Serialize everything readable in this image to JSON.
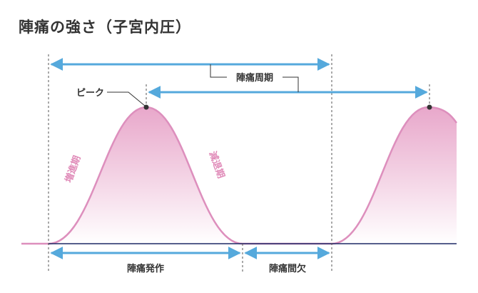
{
  "title": "陣痛の強さ（子宮内圧）",
  "labels": {
    "peak": "ピーク",
    "cycle": "陣痛周期",
    "increase": "増進期",
    "decrease": "減退期",
    "attack": "陣痛発作",
    "interval": "陣痛間欠"
  },
  "colors": {
    "curve": "#dd8fbd",
    "fill_top": "#e7a3c8",
    "arrow": "#55a9dc",
    "baseline": "#1e2a66",
    "dashed": "#555555",
    "text": "#333333",
    "phase_text": "#e08ab8"
  }
}
